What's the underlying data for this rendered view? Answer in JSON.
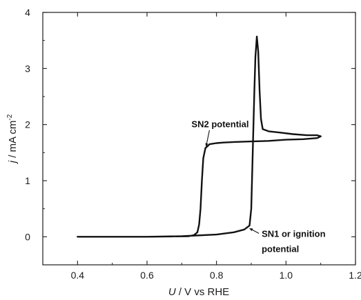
{
  "chart_data": {
    "type": "line",
    "xlabel": "U / V vs RHE",
    "xlabel_parts": {
      "symbol": "U",
      "rest": " / V vs RHE"
    },
    "ylabel": "j / mA cm-2",
    "ylabel_parts": {
      "symbol": "j",
      "rest": " / mA cm",
      "sup": "-2"
    },
    "xlim": [
      0.3,
      1.2
    ],
    "ylim": [
      -0.5,
      4.0
    ],
    "x_ticks": [
      0.4,
      0.6,
      0.8,
      1.0,
      1.2
    ],
    "x_tick_labels": [
      "0.4",
      "0.6",
      "0.8",
      "1.0",
      "1.2"
    ],
    "y_ticks": [
      0,
      1,
      2,
      3,
      4
    ],
    "y_tick_labels": [
      "0",
      "1",
      "2",
      "3",
      "4"
    ],
    "grid": false,
    "series": [
      {
        "line_color": "#111111",
        "points": [
          [
            0.4,
            0.0
          ],
          [
            0.5,
            0.0
          ],
          [
            0.6,
            0.0
          ],
          [
            0.7,
            0.01
          ],
          [
            0.8,
            0.04
          ],
          [
            0.85,
            0.08
          ],
          [
            0.88,
            0.13
          ],
          [
            0.895,
            0.2
          ],
          [
            0.9,
            0.5
          ],
          [
            0.903,
            1.2
          ],
          [
            0.906,
            1.9
          ],
          [
            0.909,
            2.6
          ],
          [
            0.912,
            3.2
          ],
          [
            0.916,
            3.57
          ],
          [
            0.92,
            3.3
          ],
          [
            0.924,
            2.6
          ],
          [
            0.928,
            2.1
          ],
          [
            0.933,
            1.92
          ],
          [
            0.95,
            1.88
          ],
          [
            0.98,
            1.86
          ],
          [
            1.02,
            1.83
          ],
          [
            1.06,
            1.81
          ],
          [
            1.09,
            1.81
          ],
          [
            1.1,
            1.79
          ],
          [
            1.09,
            1.76
          ],
          [
            1.05,
            1.74
          ],
          [
            1.0,
            1.73
          ],
          [
            0.95,
            1.71
          ],
          [
            0.9,
            1.7
          ],
          [
            0.85,
            1.69
          ],
          [
            0.82,
            1.68
          ],
          [
            0.8,
            1.67
          ],
          [
            0.78,
            1.65
          ],
          [
            0.768,
            1.58
          ],
          [
            0.762,
            1.4
          ],
          [
            0.758,
            1.0
          ],
          [
            0.754,
            0.5
          ],
          [
            0.75,
            0.22
          ],
          [
            0.745,
            0.08
          ],
          [
            0.735,
            0.03
          ],
          [
            0.72,
            0.01
          ],
          [
            0.6,
            0.0
          ],
          [
            0.4,
            0.0
          ]
        ]
      }
    ],
    "annotations": [
      {
        "text": "SN2 potential",
        "x": 0.728,
        "y": 1.95,
        "arrow_to": [
          0.77,
          1.61
        ]
      },
      {
        "text": "SN1 or ignition",
        "x": 0.93,
        "y": 0.0,
        "arrow_to": [
          0.895,
          0.15
        ]
      },
      {
        "text": "potential",
        "x": 0.93,
        "y": -0.27
      }
    ]
  }
}
